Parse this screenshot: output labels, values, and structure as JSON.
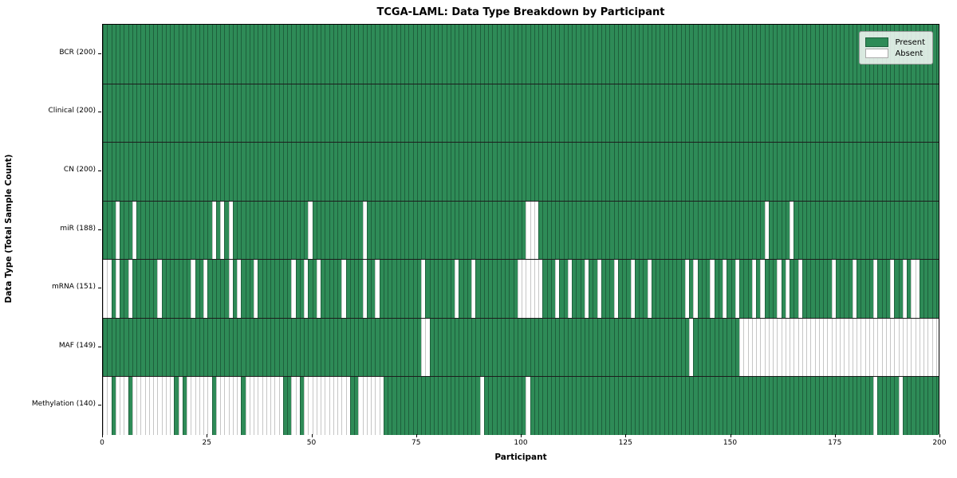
{
  "title": "TCGA-LAML: Data Type Breakdown by Participant",
  "x_axis_label": "Participant",
  "y_axis_label": "Data Type (Total Sample Count)",
  "n_participants": 200,
  "x_ticks": [
    0,
    25,
    50,
    75,
    100,
    125,
    150,
    175,
    200
  ],
  "legend": {
    "present_label": "Present",
    "absent_label": "Absent"
  },
  "colors": {
    "present": "#2e8b57",
    "absent": "#ffffff",
    "present_edge": "rgba(12,45,28,0.45)",
    "absent_edge": "#c6c6c6",
    "row_separator": "#1c1c1c",
    "plot_border": "#000000"
  },
  "chart_data": {
    "type": "heatmap",
    "value_meaning": {
      "present": 1,
      "absent": 0
    },
    "x_unit": "participant index 0-199",
    "rows": [
      {
        "name": "BCR",
        "label": "BCR (200)",
        "present_count": 200,
        "absent_participants": []
      },
      {
        "name": "Clinical",
        "label": "Clinical (200)",
        "present_count": 200,
        "absent_participants": []
      },
      {
        "name": "CN",
        "label": "CN (200)",
        "present_count": 200,
        "absent_participants": []
      },
      {
        "name": "miR",
        "label": "miR (188)",
        "present_count": 188,
        "absent_participants": [
          3,
          7,
          26,
          28,
          30,
          49,
          62,
          101,
          102,
          103,
          158,
          164
        ]
      },
      {
        "name": "mRNA",
        "label": "mRNA (151)",
        "present_count": 151,
        "absent_participants": [
          0,
          1,
          3,
          6,
          13,
          21,
          24,
          30,
          32,
          36,
          45,
          48,
          51,
          57,
          62,
          65,
          76,
          84,
          88,
          99,
          100,
          101,
          102,
          103,
          104,
          108,
          111,
          115,
          118,
          122,
          126,
          130,
          139,
          141,
          145,
          148,
          151,
          155,
          157,
          161,
          163,
          166,
          174,
          179,
          184,
          188,
          191,
          193,
          194
        ]
      },
      {
        "name": "MAF",
        "label": "MAF (149)",
        "present_count": 149,
        "absent_participants": [
          76,
          77,
          140,
          152,
          153,
          154,
          155,
          156,
          157,
          158,
          159,
          160,
          161,
          162,
          163,
          164,
          165,
          166,
          167,
          168,
          169,
          170,
          171,
          172,
          173,
          174,
          175,
          176,
          177,
          178,
          179,
          180,
          181,
          182,
          183,
          184,
          185,
          186,
          187,
          188,
          189,
          190,
          191,
          192,
          193,
          194,
          195,
          196,
          197,
          198,
          199
        ]
      },
      {
        "name": "Methylation",
        "label": "Methylation (140)",
        "present_count": 140,
        "absent_participants": [
          0,
          1,
          3,
          4,
          5,
          7,
          8,
          9,
          10,
          11,
          12,
          13,
          14,
          15,
          16,
          18,
          20,
          21,
          22,
          23,
          24,
          25,
          27,
          28,
          29,
          30,
          31,
          32,
          34,
          35,
          36,
          37,
          38,
          39,
          40,
          41,
          42,
          45,
          46,
          48,
          49,
          50,
          51,
          52,
          53,
          54,
          55,
          56,
          57,
          58,
          61,
          62,
          63,
          64,
          65,
          66,
          90,
          101,
          184,
          190
        ]
      }
    ]
  }
}
